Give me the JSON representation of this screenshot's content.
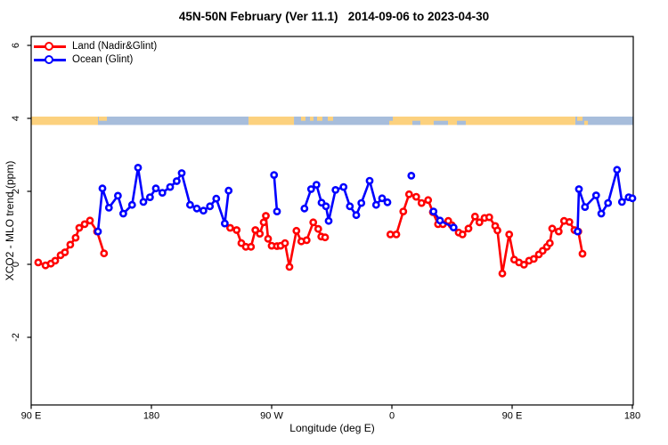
{
  "title": "45N-50N February (Ver 11.1)   2014-09-06 to 2023-04-30",
  "legend": {
    "items": [
      {
        "label": "Land (Nadir&Glint)",
        "color": "#ff0000"
      },
      {
        "label": "Ocean (Glint)",
        "color": "#0000ff"
      }
    ]
  },
  "chart_data": {
    "type": "line",
    "title": "45N-50N February (Ver 11.1)   2014-09-06 to 2023-04-30",
    "xlabel": "Longitude (deg E)",
    "ylabel": "XCO2 - MLO trend (ppm)",
    "x_axis": {
      "note": "longitude unwrapped eastward from 90E (90..540)",
      "lim": [
        90,
        540.7
      ],
      "ticks": [
        {
          "lon": 90,
          "label": "90 E"
        },
        {
          "lon": 180,
          "label": "180"
        },
        {
          "lon": 270,
          "label": "90 W"
        },
        {
          "lon": 360,
          "label": "0"
        },
        {
          "lon": 450,
          "label": "90 E"
        },
        {
          "lon": 540,
          "label": "180"
        }
      ]
    },
    "y_axis": {
      "lim": [
        -3.86,
        6.24
      ],
      "ticks": [
        {
          "value": 6,
          "label": "6"
        },
        {
          "value": 4,
          "label": "4"
        },
        {
          "value": 2,
          "label": "2"
        },
        {
          "value": 0,
          "label": "0"
        },
        {
          "value": -2,
          "label": "-2"
        }
      ]
    },
    "grid": false,
    "legend_position": "top-left",
    "series": [
      {
        "name": "Land (Nadir&Glint)",
        "color": "#ff0000",
        "segments": [
          [
            [
              95.3,
              0.05
            ],
            [
              100.7,
              -0.03
            ],
            [
              104.7,
              0.02
            ],
            [
              108,
              0.1
            ],
            [
              112,
              0.25
            ],
            [
              115.3,
              0.33
            ],
            [
              119.3,
              0.54
            ],
            [
              123.3,
              0.73
            ],
            [
              126,
              1.0
            ],
            [
              130,
              1.1
            ],
            [
              134,
              1.2
            ],
            [
              139.3,
              0.9
            ],
            [
              144.5,
              0.3
            ]
          ],
          [
            [
              238.9,
              1.0
            ],
            [
              243.8,
              0.94
            ],
            [
              247.3,
              0.58
            ],
            [
              250.7,
              0.48
            ],
            [
              254.5,
              0.48
            ],
            [
              257.8,
              0.94
            ],
            [
              261.1,
              0.84
            ],
            [
              264,
              1.15
            ],
            [
              265.7,
              1.33
            ],
            [
              267.3,
              0.7
            ],
            [
              270,
              0.51
            ],
            [
              274,
              0.5
            ],
            [
              276.7,
              0.51
            ],
            [
              280,
              0.58
            ],
            [
              283.3,
              -0.07
            ],
            [
              288.5,
              0.92
            ],
            [
              292.2,
              0.63
            ],
            [
              296.2,
              0.66
            ],
            [
              301.1,
              1.15
            ],
            [
              304.9,
              0.97
            ],
            [
              307.1,
              0.76
            ],
            [
              310,
              0.74
            ]
          ],
          [
            [
              358.9,
              0.82
            ],
            [
              363.3,
              0.82
            ],
            [
              368.5,
              1.45
            ],
            [
              372.9,
              1.92
            ],
            [
              378.2,
              1.85
            ],
            [
              382.2,
              1.68
            ],
            [
              387.1,
              1.76
            ],
            [
              390.7,
              1.43
            ],
            [
              394.5,
              1.1
            ],
            [
              398.2,
              1.1
            ],
            [
              402.2,
              1.19
            ],
            [
              404.9,
              1.07
            ],
            [
              410,
              0.87
            ],
            [
              412.9,
              0.82
            ],
            [
              417.3,
              0.98
            ],
            [
              422.2,
              1.31
            ],
            [
              425.5,
              1.15
            ],
            [
              429.3,
              1.27
            ],
            [
              432.9,
              1.29
            ],
            [
              437.3,
              1.05
            ],
            [
              439,
              0.93
            ],
            [
              442.7,
              -0.25
            ],
            [
              447.8,
              0.82
            ],
            [
              451.5,
              0.13
            ],
            [
              455.1,
              0.05
            ],
            [
              458.9,
              -0.01
            ],
            [
              462.7,
              0.1
            ],
            [
              466.2,
              0.15
            ],
            [
              470,
              0.27
            ],
            [
              472.9,
              0.37
            ],
            [
              476,
              0.48
            ],
            [
              478.2,
              0.58
            ],
            [
              480,
              0.98
            ],
            [
              484.9,
              0.9
            ],
            [
              488.9,
              1.19
            ],
            [
              492.9,
              1.16
            ],
            [
              496.7,
              0.94
            ],
            [
              499.5,
              0.9
            ],
            [
              502.7,
              0.29
            ]
          ]
        ]
      },
      {
        "name": "Ocean (Glint)",
        "color": "#0000ff",
        "segments": [
          [
            [
              140,
              0.9
            ],
            [
              143.3,
              2.08
            ],
            [
              148.2,
              1.55
            ],
            [
              154.9,
              1.88
            ],
            [
              158.9,
              1.39
            ],
            [
              165.5,
              1.63
            ],
            [
              170,
              2.65
            ],
            [
              174,
              1.71
            ],
            [
              178.9,
              1.84
            ],
            [
              183.3,
              2.08
            ],
            [
              188.2,
              1.96
            ],
            [
              194,
              2.12
            ],
            [
              198.9,
              2.28
            ],
            [
              202.7,
              2.5
            ],
            [
              208.9,
              1.63
            ],
            [
              214,
              1.53
            ],
            [
              218.9,
              1.47
            ],
            [
              223.8,
              1.59
            ],
            [
              228.5,
              1.8
            ],
            [
              234.9,
              1.12
            ],
            [
              237.8,
              2.02
            ]
          ],
          [
            [
              271.8,
              2.45
            ],
            [
              274,
              1.45
            ]
          ],
          [
            [
              294.5,
              1.53
            ],
            [
              299.5,
              2.06
            ],
            [
              303.5,
              2.18
            ],
            [
              307.3,
              1.69
            ],
            [
              310.7,
              1.59
            ],
            [
              312.7,
              1.19
            ],
            [
              317.8,
              2.04
            ],
            [
              323.8,
              2.12
            ],
            [
              328.5,
              1.59
            ],
            [
              333.3,
              1.35
            ],
            [
              337.1,
              1.68
            ],
            [
              343.3,
              2.29
            ],
            [
              348.2,
              1.63
            ],
            [
              352.7,
              1.81
            ],
            [
              356.7,
              1.7
            ]
          ],
          [
            [
              374.5,
              2.43
            ]
          ],
          [
            [
              391.1,
              1.45
            ],
            [
              396,
              1.2
            ],
            [
              406.2,
              1.01
            ]
          ],
          [
            [
              499,
              0.9
            ],
            [
              500,
              2.06
            ],
            [
              504.5,
              1.57
            ],
            [
              512.9,
              1.89
            ],
            [
              516.7,
              1.39
            ],
            [
              521.8,
              1.68
            ],
            [
              528.5,
              2.59
            ],
            [
              532.2,
              1.71
            ],
            [
              537.3,
              1.84
            ],
            [
              540,
              1.81
            ]
          ]
        ]
      }
    ],
    "land_ocean_band": {
      "y_value": 4,
      "land_color": "#fcd17e",
      "ocean_color": "#a7bddb",
      "segments": [
        {
          "from": 90,
          "to": 140,
          "type": "land"
        },
        {
          "from": 140,
          "to": 252.7,
          "type": "ocean"
        },
        {
          "from": 252.7,
          "to": 286.7,
          "type": "land"
        },
        {
          "from": 286.7,
          "to": 358,
          "type": "ocean"
        },
        {
          "from": 358,
          "to": 497.3,
          "type": "land"
        },
        {
          "from": 497.3,
          "to": 540.7,
          "type": "ocean"
        }
      ],
      "patches": [
        {
          "from": 140.7,
          "to": 146.7,
          "type": "land",
          "half": "top"
        },
        {
          "from": 292,
          "to": 295.3,
          "type": "land",
          "half": "top"
        },
        {
          "from": 298.7,
          "to": 301.3,
          "type": "land",
          "half": "top"
        },
        {
          "from": 304,
          "to": 308,
          "type": "land",
          "half": "top"
        },
        {
          "from": 312,
          "to": 316,
          "type": "land",
          "half": "top"
        },
        {
          "from": 358,
          "to": 360.7,
          "type": "ocean",
          "half": "top"
        },
        {
          "from": 375.3,
          "to": 381.3,
          "type": "ocean",
          "half": "bottom"
        },
        {
          "from": 391.3,
          "to": 402,
          "type": "ocean",
          "half": "bottom"
        },
        {
          "from": 408.7,
          "to": 415.3,
          "type": "ocean",
          "half": "bottom"
        },
        {
          "from": 498.7,
          "to": 502.7,
          "type": "land",
          "half": "top"
        },
        {
          "from": 504,
          "to": 506.7,
          "type": "land",
          "half": "bottom"
        }
      ]
    }
  }
}
